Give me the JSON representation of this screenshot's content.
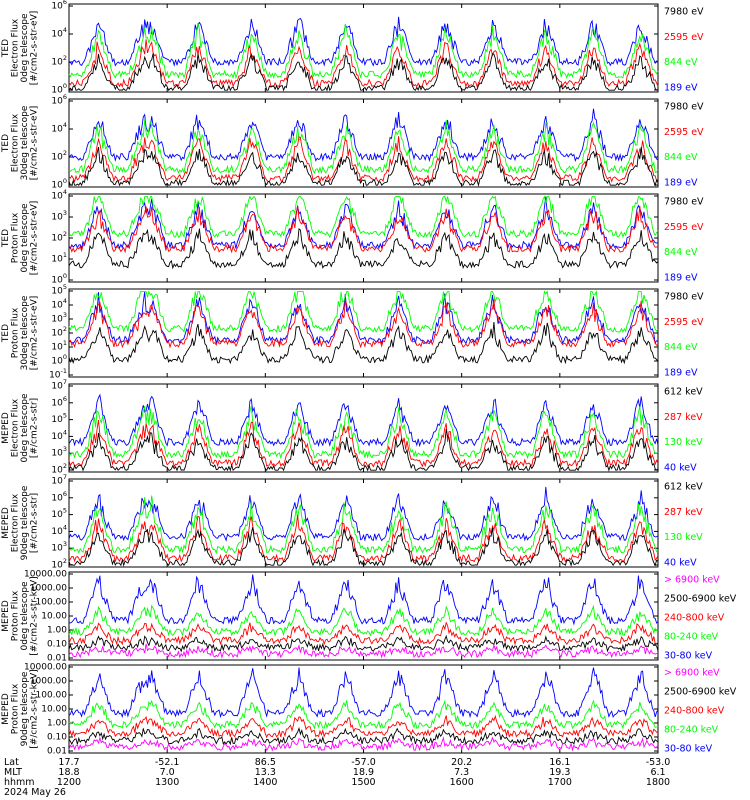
{
  "colors": {
    "blue": "#0000ff",
    "red": "#ff0000",
    "green": "#00ff00",
    "black": "#000000",
    "magenta": "#ff00ff"
  },
  "panels": [
    {
      "ylabel": [
        "TED",
        "Electron Flux",
        "0deg telescope",
        "[#/cm2-s-str-eV]"
      ],
      "yticks": [
        "10^6",
        "10^4",
        "10^2",
        "10^0"
      ],
      "legend": [
        {
          "text": "7980 eV",
          "color": "black"
        },
        {
          "text": "2595 eV",
          "color": "red"
        },
        {
          "text": "844 eV",
          "color": "green"
        },
        {
          "text": "189 eV",
          "color": "blue"
        }
      ]
    },
    {
      "ylabel": [
        "TED",
        "Electron Flux",
        "30deg telescope",
        "[#/cm2-s-str-eV]"
      ],
      "yticks": [
        "10^6",
        "10^4",
        "10^2",
        "10^0"
      ],
      "legend": [
        {
          "text": "7980 eV",
          "color": "black"
        },
        {
          "text": "2595 eV",
          "color": "red"
        },
        {
          "text": "844 eV",
          "color": "green"
        },
        {
          "text": "189 eV",
          "color": "blue"
        }
      ]
    },
    {
      "ylabel": [
        "TED",
        "Proton Flux",
        "0deg telescope",
        "[#/cm2-s-str-eV]"
      ],
      "yticks": [
        "10^4",
        "10^3",
        "10^2",
        "10^1",
        "10^0"
      ],
      "legend": [
        {
          "text": "7980 eV",
          "color": "black"
        },
        {
          "text": "2595 eV",
          "color": "red"
        },
        {
          "text": "844 eV",
          "color": "green"
        },
        {
          "text": "189 eV",
          "color": "blue"
        }
      ]
    },
    {
      "ylabel": [
        "TED",
        "Proton Flux",
        "30deg telescope",
        "[#/cm2-s-str-eV]"
      ],
      "yticks": [
        "10^5",
        "10^4",
        "10^3",
        "10^2",
        "10^1",
        "10^0",
        "10^-1"
      ],
      "legend": [
        {
          "text": "7980 eV",
          "color": "black"
        },
        {
          "text": "2595 eV",
          "color": "red"
        },
        {
          "text": "844 eV",
          "color": "green"
        },
        {
          "text": "189 eV",
          "color": "blue"
        }
      ]
    },
    {
      "ylabel": [
        "MEPED",
        "Electron Flux",
        "0deg telescope",
        "[#/cm2-s-str]"
      ],
      "yticks": [
        "10^7",
        "10^6",
        "10^5",
        "10^4",
        "10^3",
        "10^2"
      ],
      "legend": [
        {
          "text": "612 keV",
          "color": "black"
        },
        {
          "text": "287 keV",
          "color": "red"
        },
        {
          "text": "130 keV",
          "color": "green"
        },
        {
          "text": "40 keV",
          "color": "blue"
        }
      ]
    },
    {
      "ylabel": [
        "MEPED",
        "Electron Flux",
        "90deg telescope",
        "[#/cm2-s-str]"
      ],
      "yticks": [
        "10^7",
        "10^6",
        "10^5",
        "10^4",
        "10^3",
        "10^2"
      ],
      "legend": [
        {
          "text": "612 keV",
          "color": "black"
        },
        {
          "text": "287 keV",
          "color": "red"
        },
        {
          "text": "130 keV",
          "color": "green"
        },
        {
          "text": "40 keV",
          "color": "blue"
        }
      ]
    },
    {
      "ylabel": [
        "MEPED",
        "Proton Flux",
        "0deg telescope",
        "[#/cm2-s-str-keV]"
      ],
      "yticks": [
        "10000.00",
        "1000.00",
        "100.00",
        "10.00",
        "1.00",
        "0.10",
        "0.01"
      ],
      "legend": [
        {
          "text": "> 6900 keV",
          "color": "magenta"
        },
        {
          "text": "2500-6900 keV",
          "color": "black"
        },
        {
          "text": "240-800 keV",
          "color": "red"
        },
        {
          "text": "80-240 keV",
          "color": "green"
        },
        {
          "text": "30-80 keV",
          "color": "blue"
        }
      ]
    },
    {
      "ylabel": [
        "MEPED",
        "Proton Flux",
        "90deg telescope",
        "[#/cm2-s-str-keV]"
      ],
      "yticks": [
        "10000.00",
        "1000.00",
        "100.00",
        "10.00",
        "1.00",
        "0.10",
        "0.01"
      ],
      "legend": [
        {
          "text": "> 6900 keV",
          "color": "magenta"
        },
        {
          "text": "2500-6900 keV",
          "color": "black"
        },
        {
          "text": "240-800 keV",
          "color": "red"
        },
        {
          "text": "80-240 keV",
          "color": "green"
        },
        {
          "text": "30-80 keV",
          "color": "blue"
        }
      ]
    }
  ],
  "footer": {
    "row_labels": [
      "Lat",
      "MLT",
      "hhmm",
      "2024 May 26"
    ],
    "lat": [
      "17.7",
      "-52.1",
      "86.5",
      "-57.0",
      "20.2",
      "16.1",
      "-53.0"
    ],
    "mlt": [
      "18.8",
      "7.0",
      "13.3",
      "18.9",
      "7.3",
      "19.3",
      "6.1"
    ],
    "hhmm": [
      "1200",
      "1300",
      "1400",
      "1500",
      "1600",
      "1700",
      "1800"
    ]
  },
  "chart_data": {
    "type": "line",
    "x_range_hhmm": [
      "1200",
      "1800"
    ],
    "date": "2024 May 26",
    "series_by_panel": [
      {
        "blue": 100,
        "green": 30,
        "red": 3,
        "black": 1,
        "peaks": [
          10000,
          1000,
          300,
          30
        ]
      },
      {
        "blue": 300,
        "green": 50,
        "red": 5,
        "black": 1,
        "peaks": [
          10000,
          1000,
          300,
          30
        ]
      },
      {
        "blue": 100,
        "green": 300,
        "red": 100,
        "black": 10,
        "peaks": [
          10000,
          1000,
          300,
          30
        ]
      },
      {
        "blue": 100,
        "green": 300,
        "red": 100,
        "black": 1,
        "peaks": [
          10000,
          1000,
          300,
          30
        ]
      },
      {
        "blue": 200,
        "green": 150,
        "red": 150,
        "black": 150,
        "peaks": [
          500000,
          50000,
          20000,
          5000
        ]
      },
      {
        "blue": 300,
        "green": 200,
        "red": 150,
        "black": 120,
        "peaks": [
          500000,
          100000,
          50000,
          10000
        ]
      },
      {
        "blue": 3,
        "green": 1,
        "red": 0.3,
        "black": 0.05,
        "magenta": 0.02,
        "peaks": [
          1000,
          30,
          3,
          1
        ]
      },
      {
        "blue": 3,
        "green": 1,
        "red": 0.3,
        "black": 0.05,
        "magenta": 0.02,
        "peaks": [
          1000,
          30,
          3,
          1
        ]
      }
    ]
  }
}
